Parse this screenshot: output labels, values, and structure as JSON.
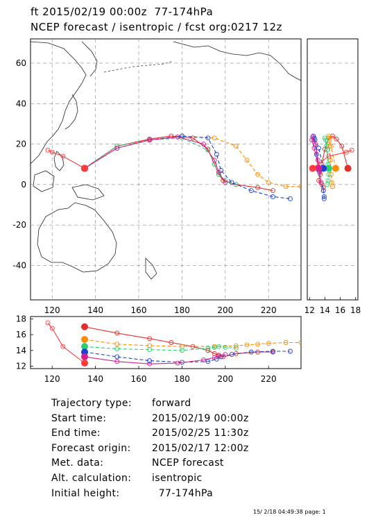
{
  "header": {
    "line1": "ft 2015/02/19 00:00z  77-174hPa",
    "line2": "NCEP forecast / isentropic / fcst org:0217 12z"
  },
  "chart_data": {
    "type": "line",
    "map_panel": {
      "x_range": [
        110,
        235
      ],
      "y_range": [
        -57,
        72
      ],
      "x_ticks": [
        120,
        140,
        160,
        180,
        200,
        220
      ],
      "y_ticks": [
        60,
        40,
        20,
        0,
        -20,
        -40
      ],
      "x_tick_labels": [
        "120",
        "140",
        "160",
        "180",
        "200",
        "220"
      ],
      "y_tick_labels": [
        "60",
        "40",
        "20",
        "0",
        "-20",
        "-40"
      ],
      "grid": "dashed"
    },
    "side_panel": {
      "x_range": [
        11.7,
        18.3
      ],
      "x_ticks": [
        12,
        14,
        16,
        18
      ],
      "x_tick_labels": [
        "12",
        "14",
        "16",
        "18"
      ]
    },
    "height_panel": {
      "x_range": [
        110,
        235
      ],
      "y_range": [
        11.7,
        18.3
      ],
      "x_ticks": [
        120,
        140,
        160,
        180,
        200,
        220
      ],
      "x_tick_labels": [
        "120",
        "140",
        "160",
        "180",
        "200",
        "220"
      ],
      "y_ticks": [
        12,
        14,
        16,
        18
      ],
      "y_tick_labels": [
        "12",
        "14",
        "16",
        "18"
      ]
    },
    "series": [
      {
        "color": "#e0302b",
        "style": "solid",
        "start_height": 17.0,
        "lon": [
          135,
          150,
          165,
          175,
          185,
          192,
          195,
          197,
          199,
          205,
          215,
          222
        ],
        "lat": [
          8,
          19,
          22.5,
          24,
          23,
          17.5,
          10,
          5,
          2,
          0,
          -1.5,
          -3
        ],
        "height": [
          17,
          16.2,
          15.5,
          15,
          14.5,
          14,
          13.6,
          13.4,
          13.2,
          13.6,
          13.8,
          13.8
        ]
      },
      {
        "color": "#ff8c00",
        "style": "dashed",
        "start_height": 15.4,
        "lon": [
          135,
          150,
          165,
          180,
          195,
          205,
          210,
          215,
          220,
          228,
          235
        ],
        "lat": [
          8,
          19,
          22,
          24,
          23,
          19,
          12,
          5,
          1,
          -1,
          -1
        ],
        "height": [
          15.4,
          14.8,
          14.6,
          14.5,
          14.5,
          14.6,
          14.7,
          14.8,
          14.9,
          15,
          15
        ]
      },
      {
        "color": "#2ecc71",
        "style": "dashed",
        "start_height": 14.5,
        "lon": [
          135,
          150,
          165,
          180,
          192,
          195,
          197,
          200,
          205
        ],
        "lat": [
          8,
          19,
          22,
          23,
          17,
          10,
          5,
          2,
          0
        ],
        "height": [
          14.5,
          14.2,
          14.1,
          14.0,
          14.3,
          14.4,
          14.5,
          14.4,
          14.3
        ]
      },
      {
        "color": "#1f3fd6",
        "style": "dashed",
        "start_height": 13.8,
        "lon": [
          135,
          150,
          165,
          180,
          192,
          196,
          198,
          203,
          212,
          222,
          230
        ],
        "lat": [
          8,
          18,
          22,
          24,
          23,
          15,
          7,
          1,
          -3,
          -6,
          -7
        ],
        "height": [
          13.8,
          13.2,
          12.7,
          12.5,
          12.6,
          12.9,
          13.2,
          13.5,
          13.8,
          13.9,
          13.9
        ]
      },
      {
        "color": "#d4218f",
        "style": "solid",
        "start_height": 13.2,
        "lon": [
          135,
          150,
          165,
          178,
          190,
          195,
          197,
          200
        ],
        "lat": [
          8,
          18,
          22,
          23.5,
          20,
          12,
          6,
          1
        ],
        "height": [
          13.2,
          12.6,
          12.3,
          12.4,
          12.8,
          13.1,
          13.3,
          13.5
        ]
      },
      {
        "color": "#ff3b3b",
        "style": "solid",
        "start_height": 12.4,
        "lon": [
          135,
          125,
          120,
          118
        ],
        "lat": [
          8,
          14,
          16,
          17
        ],
        "height": [
          12.4,
          14.5,
          16.8,
          17.5
        ]
      }
    ]
  },
  "info": {
    "rows": [
      {
        "label": "Trajectory type:",
        "value": "forward"
      },
      {
        "label": "Start time:",
        "value": "2015/02/19 00:00z"
      },
      {
        "label": "End time:",
        "value": "2015/02/25 11:30z"
      },
      {
        "label": "Forecast origin:",
        "value": "2015/02/17 12:00z"
      },
      {
        "label": "Met. data:",
        "value": "NCEP forecast"
      },
      {
        "label": "Alt. calculation:",
        "value": "isentropic"
      },
      {
        "label": "Initial height:",
        "value": "  77-174hPa"
      }
    ]
  },
  "stamp": "15/ 2/18 04:49:38 page: 1"
}
